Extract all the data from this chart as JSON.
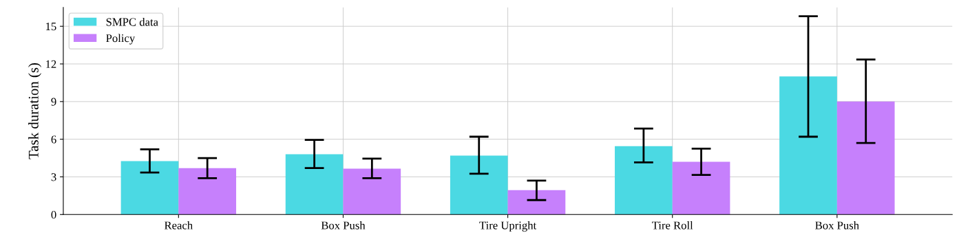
{
  "chart_data": {
    "type": "bar",
    "ylabel": "Task duration (s)",
    "categories": [
      "Reach",
      "Box Push",
      "Tire Upright",
      "Tire Roll",
      "Box Push"
    ],
    "series": [
      {
        "name": "SMPC data",
        "color": "#4bd9e3",
        "values": [
          4.25,
          4.8,
          4.7,
          5.45,
          11.0
        ],
        "errors": [
          [
            3.35,
            5.2
          ],
          [
            3.7,
            5.95
          ],
          [
            3.25,
            6.2
          ],
          [
            4.15,
            6.85
          ],
          [
            6.2,
            15.8
          ]
        ]
      },
      {
        "name": "Policy",
        "color": "#c680fc",
        "values": [
          3.7,
          3.65,
          1.95,
          4.2,
          9.0
        ],
        "errors": [
          [
            2.9,
            4.5
          ],
          [
            2.9,
            4.45
          ],
          [
            1.15,
            2.7
          ],
          [
            3.15,
            5.25
          ],
          [
            5.7,
            12.35
          ]
        ]
      }
    ],
    "ylim": [
      0,
      16.5
    ],
    "yticks": [
      0,
      3,
      6,
      9,
      12,
      15
    ],
    "grid": true,
    "legend": "top left"
  }
}
